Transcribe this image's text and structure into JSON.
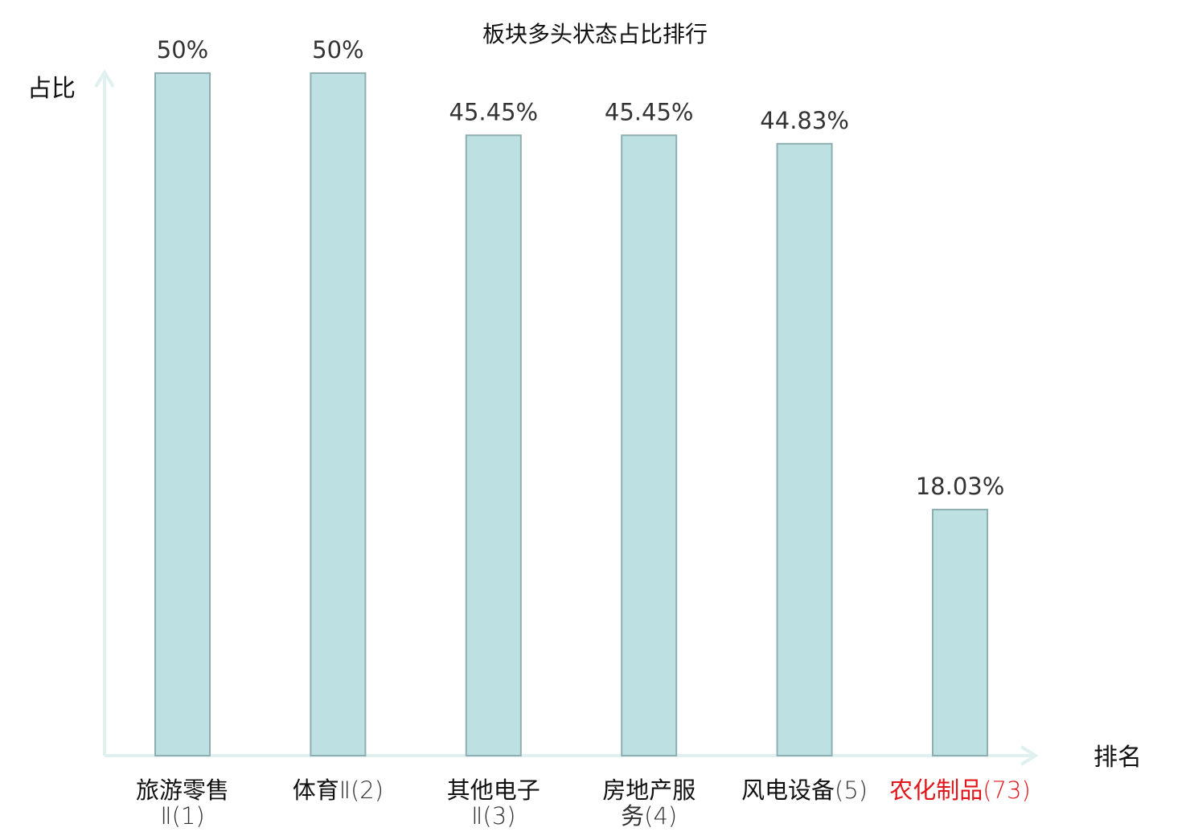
{
  "chart_data": {
    "type": "bar",
    "title": "板块多头状态占比排行",
    "xlabel": "排名",
    "ylabel": "占比",
    "ylim": [
      0,
      50
    ],
    "grid": false,
    "categories": [
      {
        "name": "旅游零售",
        "rank": "Ⅱ(1)",
        "highlight": false
      },
      {
        "name": "体育",
        "rank": "Ⅱ(2)",
        "highlight": false
      },
      {
        "name": "其他电子",
        "rank": "Ⅱ(3)",
        "highlight": false
      },
      {
        "name": "房地产服",
        "rank": "务(4)",
        "highlight": false
      },
      {
        "name": "风电设备",
        "rank": "(5)",
        "highlight": false
      },
      {
        "name": "农化制品",
        "rank": "(73)",
        "highlight": true
      }
    ],
    "values": [
      50,
      50,
      45.45,
      45.45,
      44.83,
      18.03
    ],
    "value_labels": [
      "50%",
      "50%",
      "45.45%",
      "45.45%",
      "44.83%",
      "18.03%"
    ],
    "colors": {
      "bar_fill": "#bde0e3",
      "bar_stroke": "#8faeb2",
      "axis": "#dff0ee",
      "label": "#333333",
      "category_text": "#111111",
      "category_rank": "#333333",
      "highlight": "#e0161b"
    }
  }
}
